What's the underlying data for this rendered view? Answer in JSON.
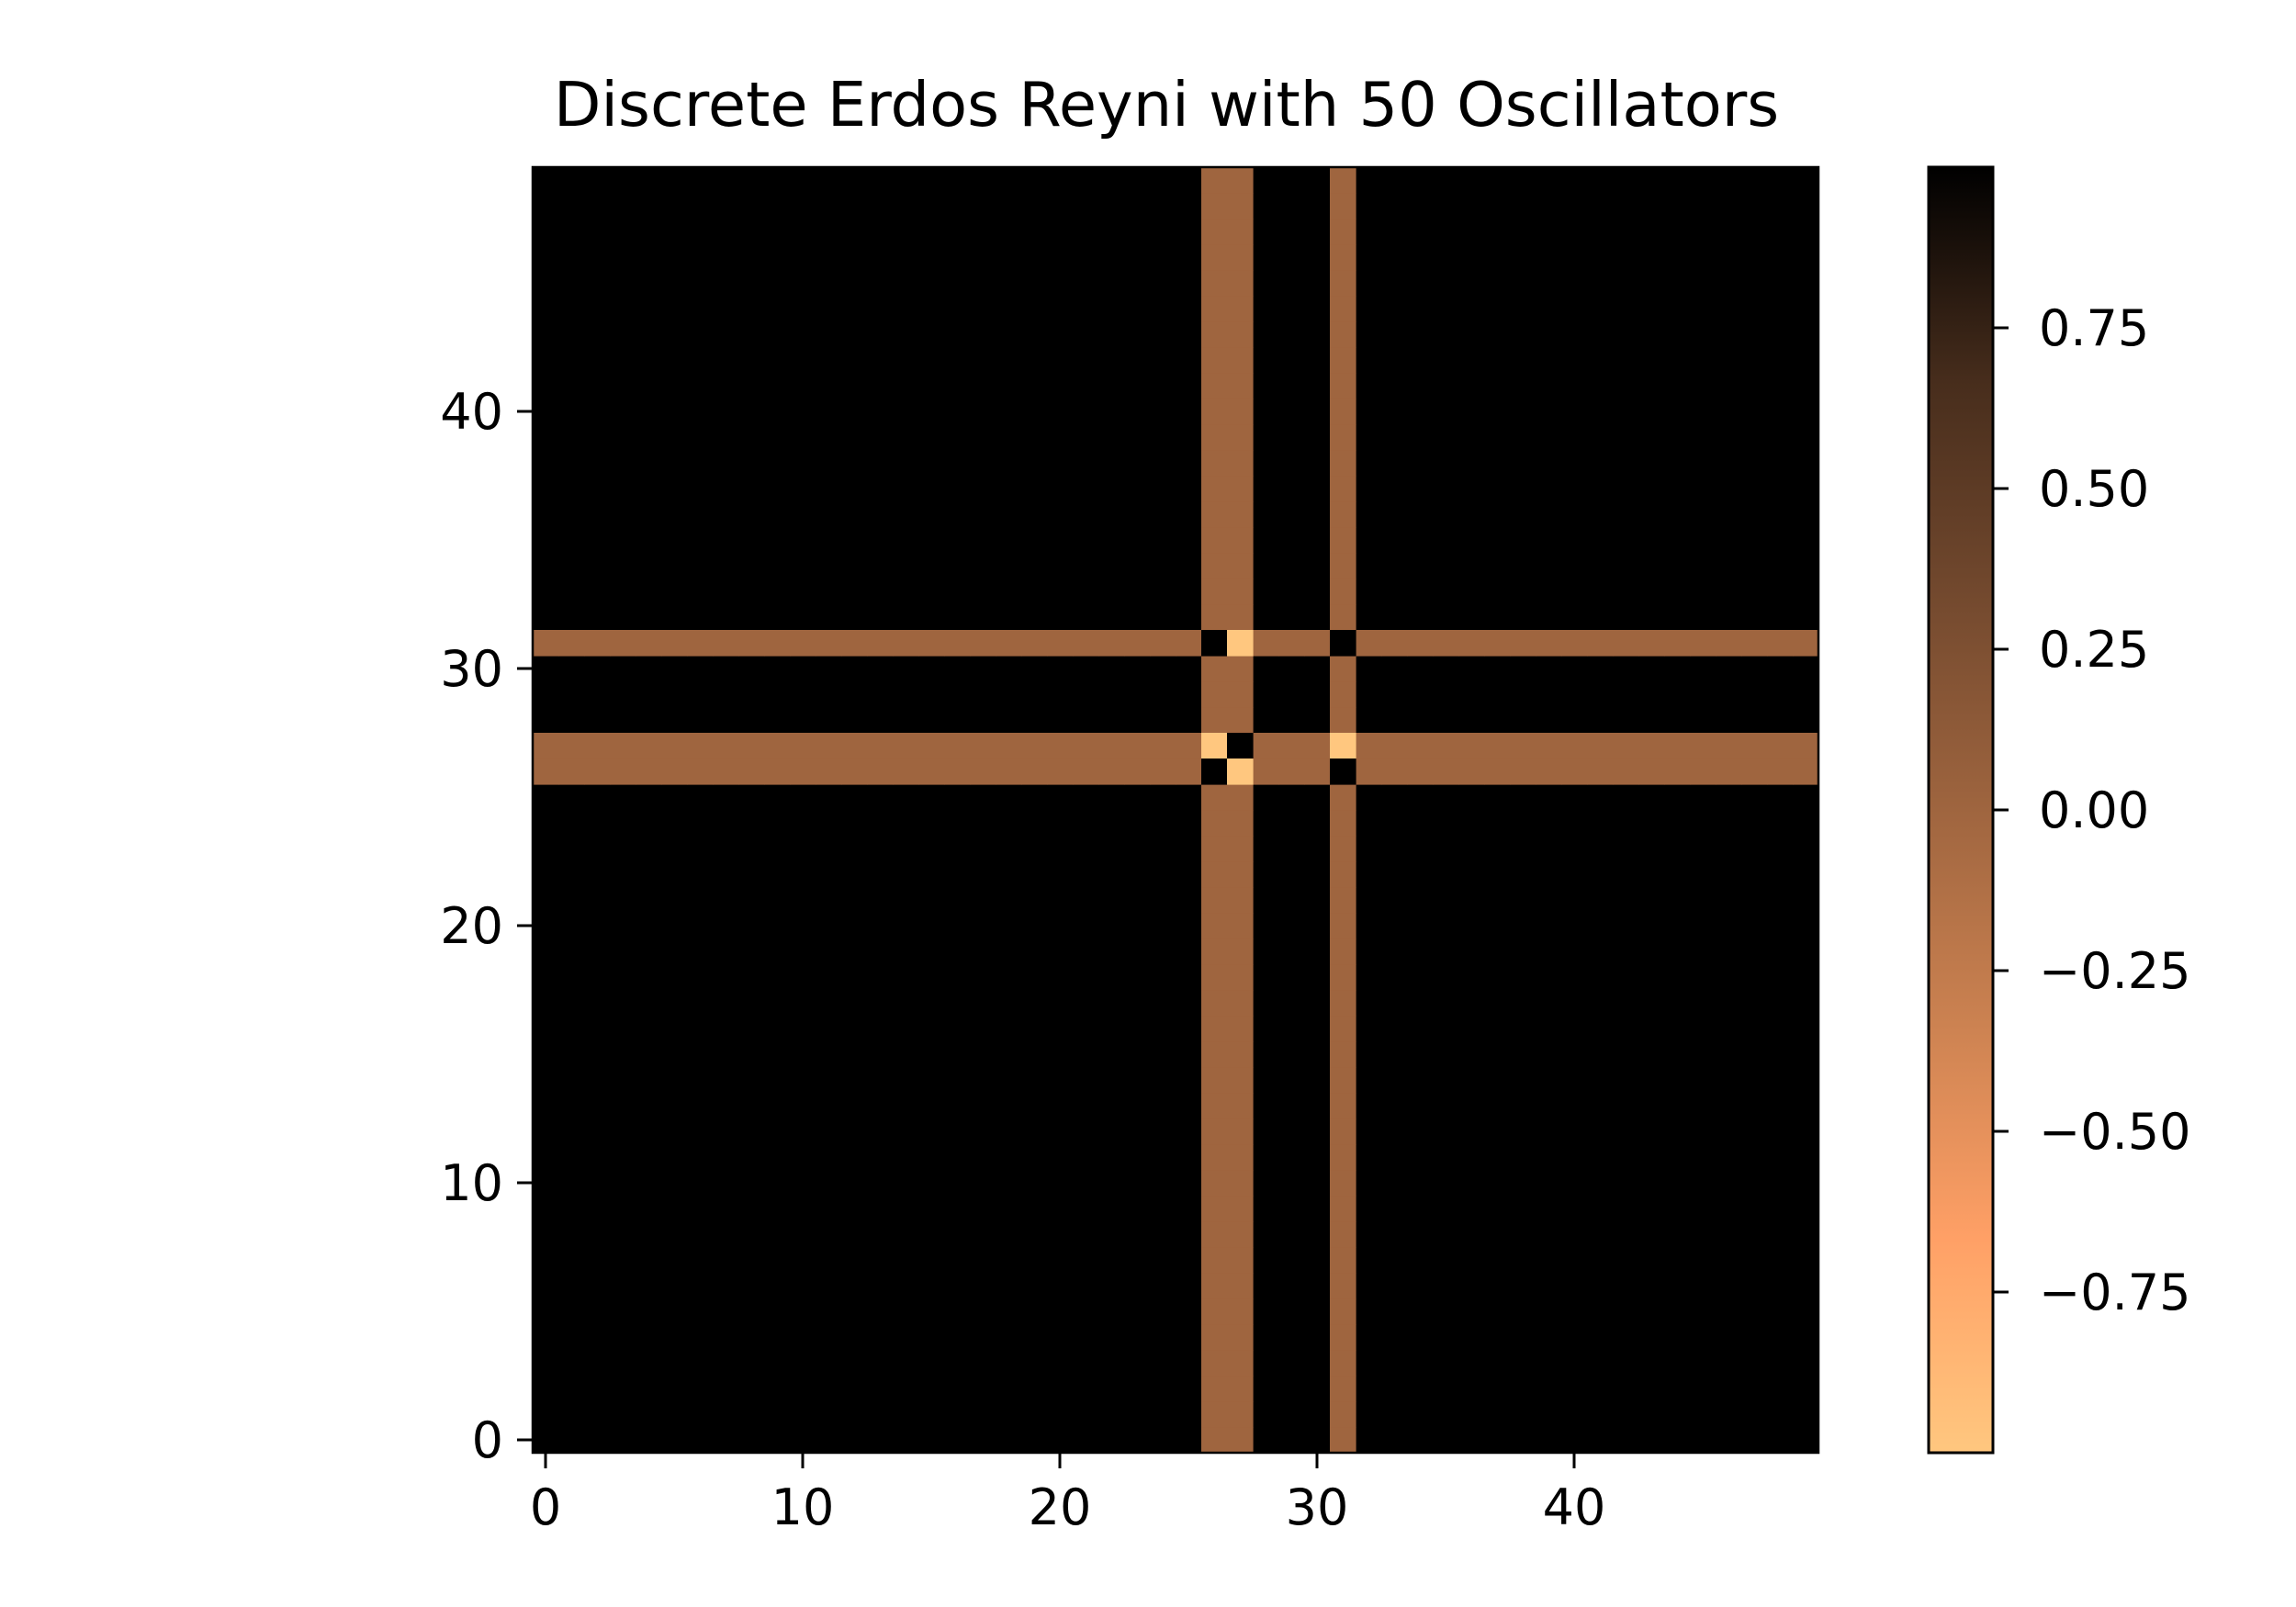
{
  "chart_data": {
    "type": "heatmap",
    "title": "Discrete Erdos Reyni with 50 Oscillators",
    "xlabel": "",
    "ylabel": "",
    "grid": false,
    "xlim": [
      -0.5,
      49.5
    ],
    "ylim": [
      -0.5,
      49.5
    ],
    "x_ticks": [
      "0",
      "10",
      "20",
      "30",
      "40"
    ],
    "y_ticks": [
      "0",
      "10",
      "20",
      "30",
      "40"
    ],
    "x_tick_values": [
      0,
      10,
      20,
      30,
      40
    ],
    "y_tick_values": [
      0,
      10,
      20,
      30,
      40
    ],
    "colormap": "copper_r",
    "vmin": -1,
    "vmax": 1,
    "colorbar": {
      "ticks": [
        "0.75",
        "0.50",
        "0.25",
        "0.00",
        "−0.25",
        "−0.50",
        "−0.75"
      ],
      "tick_values": [
        0.75,
        0.5,
        0.25,
        0.0,
        -0.25,
        -0.5,
        -0.75
      ],
      "colors": [
        "#ffc77f",
        "#ffa066",
        "#cc8251",
        "#9f653f",
        "#73492e",
        "#472d1c",
        "#000000"
      ]
    },
    "background_value": 1,
    "band_value": 0,
    "band_rows": [
      26,
      27,
      31
    ],
    "band_cols": [
      26,
      27,
      31
    ],
    "cell_overrides": [
      {
        "x": 26,
        "y": 31,
        "value": 1
      },
      {
        "x": 27,
        "y": 31,
        "value": -1
      },
      {
        "x": 31,
        "y": 31,
        "value": 1
      },
      {
        "x": 26,
        "y": 27,
        "value": -1
      },
      {
        "x": 27,
        "y": 27,
        "value": 1
      },
      {
        "x": 31,
        "y": 27,
        "value": -1
      },
      {
        "x": 26,
        "y": 26,
        "value": 1
      },
      {
        "x": 27,
        "y": 26,
        "value": -1
      },
      {
        "x": 31,
        "y": 26,
        "value": 1
      }
    ]
  }
}
